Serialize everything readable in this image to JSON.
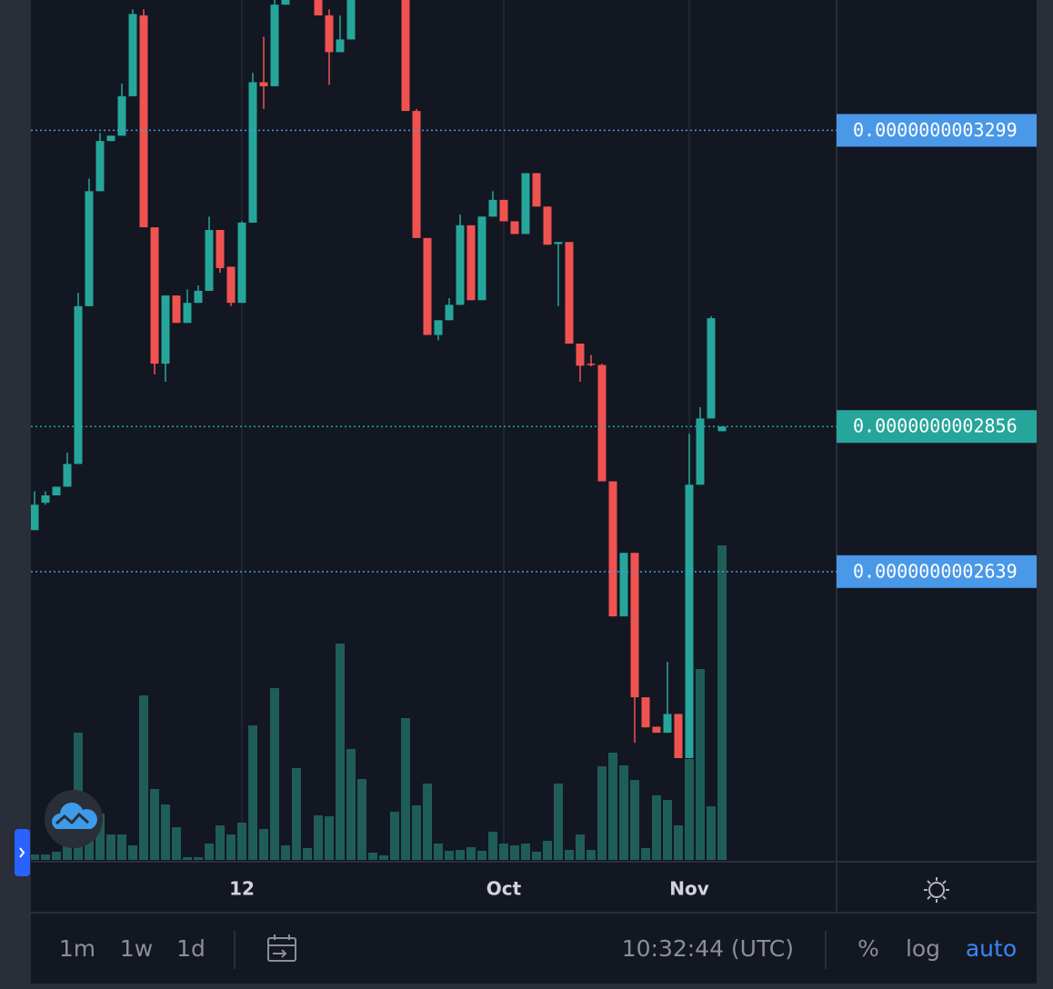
{
  "chart_data": {
    "type": "candlestick",
    "categories": [
      null,
      null,
      null,
      null,
      null,
      null,
      null,
      null,
      null,
      null,
      null,
      null,
      null,
      null,
      null,
      null,
      null,
      null,
      null,
      "12",
      null,
      null,
      null,
      null,
      null,
      null,
      null,
      null,
      null,
      null,
      null,
      null,
      null,
      null,
      null,
      null,
      null,
      null,
      null,
      null,
      null,
      null,
      null,
      "Oct",
      null,
      null,
      null,
      null,
      null,
      null,
      null,
      null,
      null,
      null,
      null,
      null,
      null,
      null,
      null,
      null,
      "Nov",
      null,
      null,
      null
    ],
    "open": [
      2.701e-10,
      2.742e-10,
      2.753e-10,
      2.766e-10,
      2.8e-10,
      3.036e-10,
      3.208e-10,
      3.283e-10,
      3.291e-10,
      3.35e-10,
      3.471e-10,
      3.154e-10,
      2.95e-10,
      3.052e-10,
      3.011e-10,
      3.041e-10,
      3.059e-10,
      3.15e-10,
      3.095e-10,
      3.041e-10,
      3.161e-10,
      3.371e-10,
      3.365e-10,
      3.487e-10,
      3.501e-10,
      3.548e-10,
      3.521e-10,
      3.471e-10,
      3.416e-10,
      3.435e-10,
      3.494e-10,
      3.535e-10,
      3.548e-10,
      3.521e-10,
      3.494e-10,
      3.328e-10,
      3.138e-10,
      2.993e-10,
      3.015e-10,
      3.038e-10,
      3.157e-10,
      3.045e-10,
      3.17e-10,
      3.195e-10,
      3.163e-10,
      3.144e-10,
      3.235e-10,
      3.185e-10,
      3.129e-10,
      3.132e-10,
      2.98e-10,
      2.95e-10,
      2.948e-10,
      2.774e-10,
      2.572e-10,
      2.667e-10,
      2.451e-10,
      2.407e-10,
      2.398e-10,
      2.426e-10,
      2.36e-10,
      2.769e-10,
      2.868e-10,
      2.849e-10
    ],
    "high": [
      2.759e-10,
      2.759e-10,
      2.766e-10,
      2.817e-10,
      3.056e-10,
      3.227e-10,
      3.295e-10,
      3.291e-10,
      3.369e-10,
      3.48e-10,
      3.48e-10,
      3.154e-10,
      3.052e-10,
      3.052e-10,
      3.061e-10,
      3.067e-10,
      3.17e-10,
      3.15e-10,
      3.095e-10,
      3.163e-10,
      3.385e-10,
      3.439e-10,
      3.494e-10,
      3.508e-10,
      3.548e-10,
      3.548e-10,
      3.521e-10,
      3.48e-10,
      3.471e-10,
      3.508e-10,
      3.548e-10,
      3.56e-10,
      3.56e-10,
      3.53e-10,
      3.501e-10,
      3.331e-10,
      3.138e-10,
      3.015e-10,
      3.048e-10,
      3.173e-10,
      3.157e-10,
      3.17e-10,
      3.208e-10,
      3.195e-10,
      3.163e-10,
      3.235e-10,
      3.235e-10,
      3.185e-10,
      3.132e-10,
      3.132e-10,
      2.98e-10,
      2.963e-10,
      2.95e-10,
      2.774e-10,
      2.667e-10,
      2.667e-10,
      2.451e-10,
      2.407e-10,
      2.504e-10,
      2.426e-10,
      2.845e-10,
      2.885e-10,
      3.021e-10,
      2.856e-10
    ],
    "low": [
      2.701e-10,
      2.739e-10,
      2.753e-10,
      2.766e-10,
      2.8e-10,
      3.036e-10,
      3.208e-10,
      3.283e-10,
      3.291e-10,
      3.35e-10,
      3.154e-10,
      2.934e-10,
      2.923e-10,
      3.011e-10,
      3.011e-10,
      3.041e-10,
      3.059e-10,
      3.086e-10,
      3.036e-10,
      3.041e-10,
      3.161e-10,
      3.331e-10,
      3.365e-10,
      3.487e-10,
      3.494e-10,
      3.501e-10,
      3.471e-10,
      3.367e-10,
      3.416e-10,
      3.435e-10,
      3.494e-10,
      3.52e-10,
      3.521e-10,
      3.494e-10,
      3.328e-10,
      3.138e-10,
      2.993e-10,
      2.985e-10,
      3.015e-10,
      3.038e-10,
      3.045e-10,
      3.045e-10,
      3.17e-10,
      3.163e-10,
      3.144e-10,
      3.144e-10,
      3.185e-10,
      3.128e-10,
      3.036e-10,
      2.98e-10,
      2.923e-10,
      2.946e-10,
      2.774e-10,
      2.572e-10,
      2.572e-10,
      2.383e-10,
      2.406e-10,
      2.398e-10,
      2.398e-10,
      2.36e-10,
      2.36e-10,
      2.769e-10,
      2.868e-10,
      2.849e-10
    ],
    "close": [
      2.739e-10,
      2.753e-10,
      2.766e-10,
      2.8e-10,
      3.036e-10,
      3.208e-10,
      3.283e-10,
      3.291e-10,
      3.35e-10,
      3.473e-10,
      3.154e-10,
      2.95e-10,
      3.052e-10,
      3.011e-10,
      3.041e-10,
      3.059e-10,
      3.15e-10,
      3.093e-10,
      3.041e-10,
      3.161e-10,
      3.371e-10,
      3.365e-10,
      3.487e-10,
      3.501e-10,
      3.535e-10,
      3.508e-10,
      3.471e-10,
      3.416e-10,
      3.435e-10,
      3.494e-10,
      3.535e-10,
      3.548e-10,
      3.521e-10,
      3.494e-10,
      3.328e-10,
      3.138e-10,
      2.993e-10,
      3.015e-10,
      3.038e-10,
      3.157e-10,
      3.045e-10,
      3.17e-10,
      3.195e-10,
      3.163e-10,
      3.144e-10,
      3.235e-10,
      3.185e-10,
      3.128e-10,
      3.132e-10,
      2.98e-10,
      2.947e-10,
      2.948e-10,
      2.774e-10,
      2.572e-10,
      2.667e-10,
      2.451e-10,
      2.406e-10,
      2.398e-10,
      2.426e-10,
      2.36e-10,
      2.769e-10,
      2.868e-10,
      3.018e-10,
      2.856e-10
    ],
    "volume": [
      6,
      6,
      9,
      16,
      140,
      51,
      51,
      28,
      28,
      16,
      181,
      78,
      61,
      36,
      3,
      3,
      18,
      38,
      28,
      41,
      148,
      34,
      189,
      16,
      101,
      13,
      49,
      48,
      238,
      122,
      89,
      8,
      5,
      53,
      156,
      60,
      84,
      18,
      10,
      11,
      14,
      10,
      31,
      18,
      16,
      18,
      9,
      21,
      84,
      11,
      28,
      11,
      103,
      118,
      104,
      88,
      13,
      71,
      66,
      38,
      111,
      210,
      59,
      346
    ],
    "up_color": "#26a69a",
    "down_color": "#ef5350",
    "volume_color": "#1f5d59",
    "ylim": [
      2.205e-10,
      3.494e-10
    ],
    "price_lines": [
      {
        "value": 3.299e-10,
        "label": "0.0000000003299",
        "color": "#4a98e8"
      },
      {
        "value": 2.856e-10,
        "label": "0.0000000002856",
        "color": "#26a69a"
      },
      {
        "value": 2.639e-10,
        "label": "0.0000000002639",
        "color": "#4a98e8"
      }
    ]
  },
  "toolbar": {
    "ranges": [
      "1m",
      "1w",
      "1d"
    ],
    "clock": "10:32:44 (UTC)",
    "scale_options": [
      "%",
      "log",
      "auto"
    ]
  }
}
